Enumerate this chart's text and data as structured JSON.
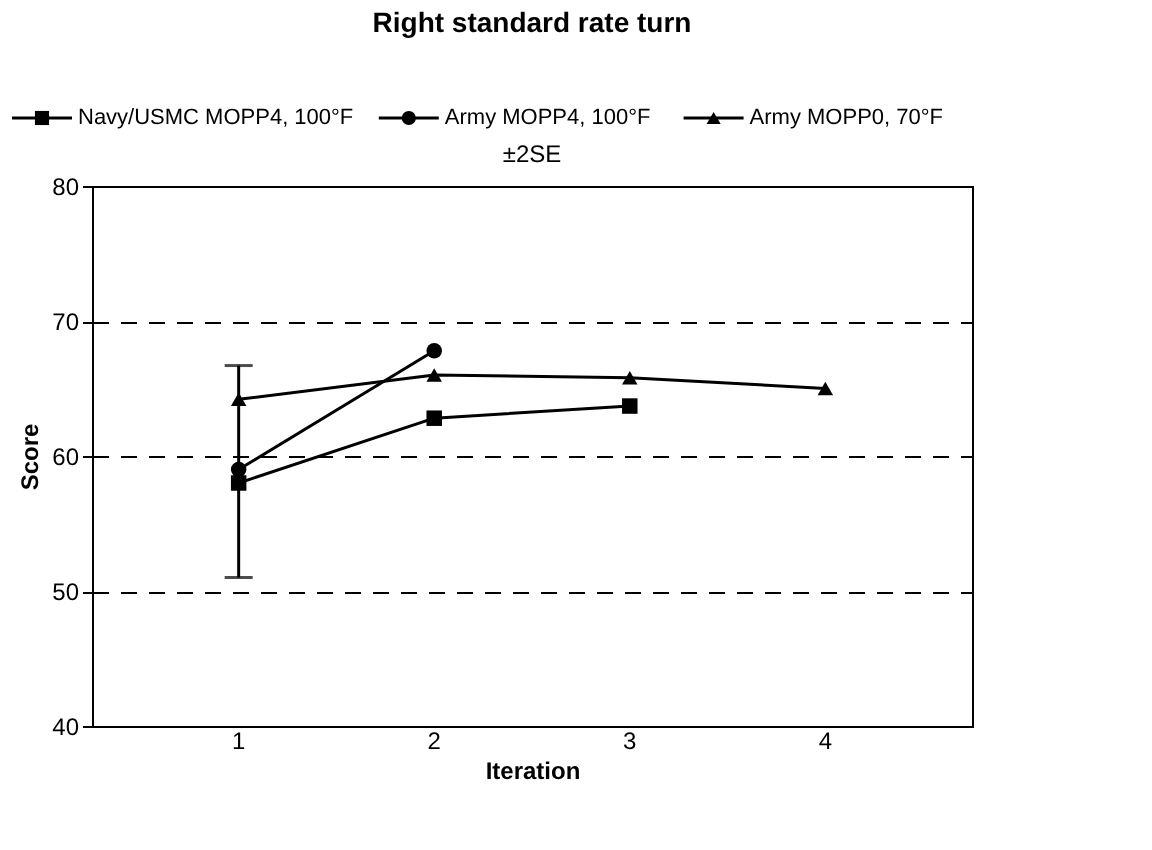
{
  "chart_data": {
    "type": "line",
    "title": "Right standard rate turn",
    "xlabel": "Iteration",
    "ylabel": "Score",
    "categories": [
      "1",
      "2",
      "3",
      "4"
    ],
    "series": [
      {
        "name": "Navy/USMC MOPP4, 100°F",
        "color": "#000000",
        "marker": "square",
        "values": [
          58.0,
          62.8,
          63.7,
          null
        ]
      },
      {
        "name": "Army MOPP4, 100°F",
        "color": "#000000",
        "marker": "circle",
        "values": [
          59.0,
          67.8,
          null,
          null
        ],
        "errors": [
          [
            51.0,
            66.7
          ],
          null,
          null,
          null
        ]
      },
      {
        "name": "Army MOPP0, 70°F",
        "color": "#000000",
        "marker": "triangle",
        "values": [
          64.2,
          66.0,
          65.8,
          65.0
        ]
      }
    ],
    "ylim": [
      40,
      80
    ],
    "yticks": [
      40,
      50,
      60,
      70,
      80
    ],
    "grid": "y",
    "legend": "top",
    "line_style": "solid",
    "annotations": [
      "±2SE"
    ]
  }
}
